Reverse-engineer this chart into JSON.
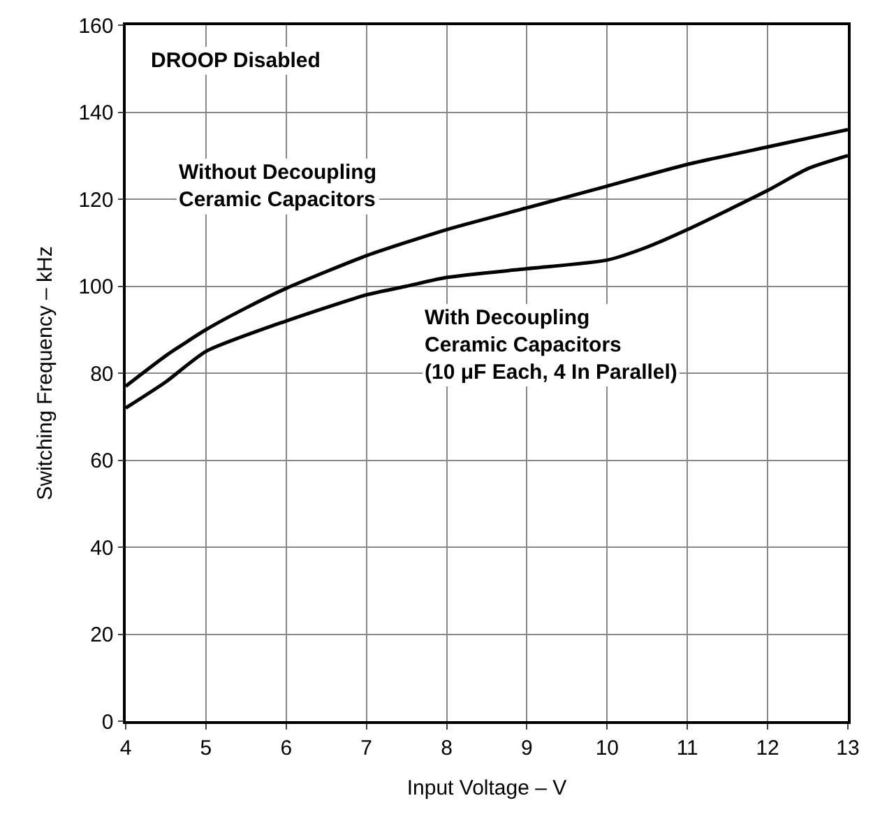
{
  "chart_data": {
    "type": "line",
    "xlabel": "Input Voltage – V",
    "ylabel": "Switching Frequency – kHz",
    "xlim": [
      4,
      13
    ],
    "xticks": [
      4,
      5,
      6,
      7,
      8,
      9,
      10,
      11,
      12,
      13
    ],
    "ylim": [
      0,
      160
    ],
    "yticks": [
      0,
      20,
      40,
      60,
      80,
      100,
      120,
      140,
      160
    ],
    "grid": true,
    "marker": "none",
    "line_style": "solid",
    "annotations": [
      "DROOP Disabled",
      "Without Decoupling\nCeramic Capacitors",
      "With Decoupling\nCeramic Capacitors\n(10 μF Each, 4 In Parallel)"
    ],
    "series": [
      {
        "color": "#000000",
        "x": [
          4,
          4.5,
          5,
          5.5,
          6,
          7,
          8,
          9,
          10,
          11,
          12,
          12.5,
          13
        ],
        "values": [
          77,
          84,
          90,
          95,
          99.5,
          107,
          113,
          118,
          123,
          128,
          132,
          134,
          136
        ]
      },
      {
        "color": "#000000",
        "x": [
          4,
          4.5,
          5,
          6,
          7,
          7.5,
          8,
          9,
          10,
          10.5,
          11,
          12,
          12.5,
          13
        ],
        "values": [
          72,
          78,
          85,
          92,
          98,
          100,
          102,
          104,
          106,
          109,
          113,
          122,
          127,
          130
        ]
      }
    ]
  }
}
